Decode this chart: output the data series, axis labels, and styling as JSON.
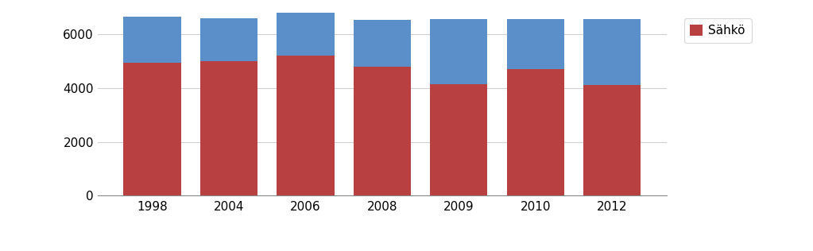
{
  "years": [
    "1998",
    "2004",
    "2006",
    "2008",
    "2009",
    "2010",
    "2012"
  ],
  "sahko_values": [
    4950,
    5000,
    5200,
    4780,
    4150,
    4700,
    4100
  ],
  "top_values": [
    1700,
    1600,
    1600,
    1750,
    2400,
    1850,
    2450
  ],
  "sahko_color": "#b94040",
  "top_color": "#5b8fc9",
  "legend_label": "Sähkö",
  "ylim": [
    0,
    6800
  ],
  "yticks": [
    0,
    2000,
    4000,
    6000
  ],
  "bar_width": 0.75,
  "figsize": [
    10.23,
    3.16
  ],
  "dpi": 100,
  "bg_color": "#ffffff",
  "grid_color": "#d0d0d0"
}
